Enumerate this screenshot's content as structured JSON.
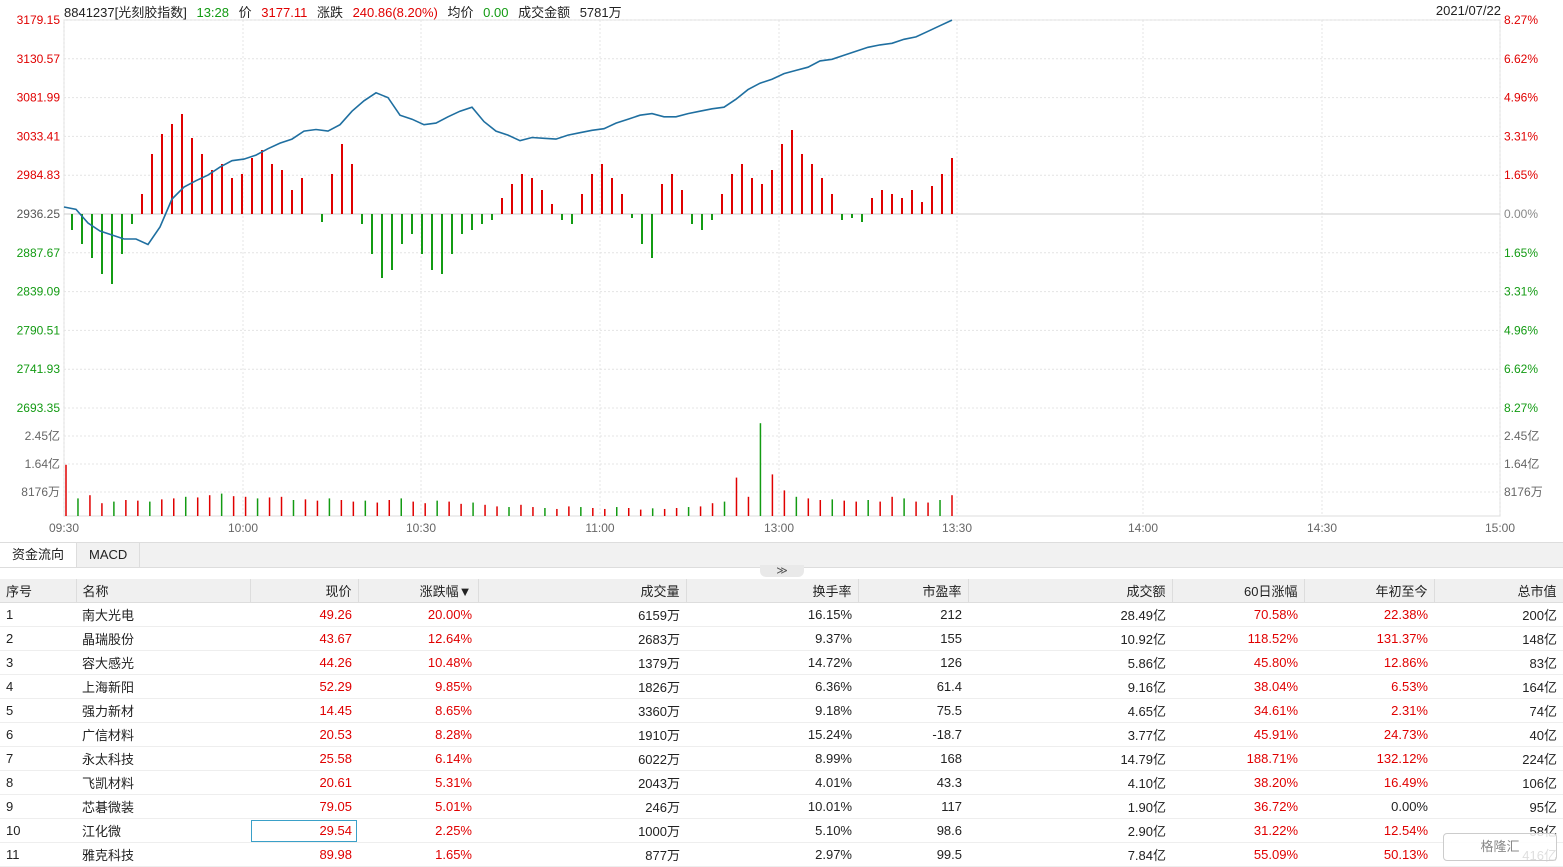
{
  "header": {
    "code_name": "8841237[光刻胶指数]",
    "time": "13:28",
    "price_label": "价",
    "price": "3177.11",
    "change_label": "涨跌",
    "change": "240.86(8.20%)",
    "avg_label": "均价",
    "avg": "0.00",
    "turnover_label": "成交金额",
    "turnover": "5781万",
    "date": "2021/07/22"
  },
  "chart_data": {
    "type": "line",
    "price_ticks": [
      "3179.15",
      "3130.57",
      "3081.99",
      "3033.41",
      "2984.83",
      "2936.25",
      "2887.67",
      "2839.09",
      "2790.51",
      "2741.93",
      "2693.35"
    ],
    "pct_ticks": [
      "8.27%",
      "6.62%",
      "4.96%",
      "3.31%",
      "1.65%",
      "0.00%",
      "1.65%",
      "3.31%",
      "4.96%",
      "6.62%",
      "8.27%"
    ],
    "pct_colors": [
      "#e00000",
      "#e00000",
      "#e00000",
      "#e00000",
      "#e00000",
      "#888888",
      "#139b13",
      "#139b13",
      "#139b13",
      "#139b13",
      "#139b13"
    ],
    "vol_ticks": [
      "2.45亿",
      "1.64亿",
      "8176万"
    ],
    "time_ticks": [
      "09:30",
      "10:00",
      "10:30",
      "11:00",
      "13:30",
      "14:00",
      "14:30",
      "15:00"
    ],
    "time_ticks_secondary": [
      "13:00"
    ],
    "price_series": [
      2945,
      2942,
      2925,
      2915,
      2910,
      2905,
      2905,
      2898,
      2920,
      2955,
      2970,
      2978,
      2985,
      2995,
      3003,
      3005,
      3010,
      3018,
      3025,
      3030,
      3040,
      3042,
      3040,
      3048,
      3065,
      3078,
      3088,
      3082,
      3060,
      3055,
      3048,
      3050,
      3058,
      3065,
      3070,
      3052,
      3040,
      3035,
      3028,
      3032,
      3031,
      3030,
      3035,
      3038,
      3041,
      3043,
      3050,
      3055,
      3060,
      3062,
      3058,
      3058,
      3062,
      3065,
      3068,
      3070,
      3080,
      3092,
      3100,
      3105,
      3112,
      3116,
      3120,
      3128,
      3130,
      3135,
      3140,
      3145,
      3148,
      3150,
      3155,
      3158,
      3165,
      3172,
      3179
    ],
    "volume_series": [
      160,
      55,
      65,
      40,
      45,
      50,
      48,
      45,
      52,
      55,
      60,
      58,
      65,
      70,
      62,
      60,
      55,
      58,
      60,
      50,
      52,
      48,
      55,
      50,
      45,
      48,
      42,
      50,
      55,
      45,
      40,
      48,
      45,
      38,
      42,
      35,
      30,
      28,
      35,
      28,
      25,
      22,
      30,
      28,
      25,
      22,
      28,
      25,
      20,
      24,
      22,
      25,
      28,
      30,
      40,
      45,
      120,
      60,
      290,
      130,
      80,
      60,
      55,
      50,
      52,
      48,
      45,
      50,
      45,
      60,
      55,
      45,
      42,
      50,
      65
    ],
    "macd_series": [
      -8,
      -15,
      -22,
      -30,
      -35,
      -20,
      -5,
      10,
      30,
      40,
      45,
      50,
      38,
      30,
      22,
      25,
      18,
      20,
      28,
      32,
      25,
      22,
      12,
      18,
      0,
      -4,
      20,
      35,
      25,
      -5,
      -20,
      -32,
      -28,
      -15,
      -10,
      -20,
      -28,
      -30,
      -20,
      -10,
      -8,
      -5,
      -3,
      8,
      15,
      20,
      18,
      12,
      5,
      -3,
      -5,
      10,
      20,
      25,
      18,
      10,
      -2,
      -15,
      -22,
      15,
      20,
      12,
      -5,
      -8,
      -3,
      10,
      20,
      25,
      18,
      15,
      22,
      35,
      42,
      30,
      25,
      18,
      10,
      -3,
      -2,
      -4,
      8,
      12,
      10,
      8,
      12,
      6,
      14,
      20,
      28
    ],
    "ylim": [
      2693.35,
      3179.15
    ]
  },
  "tabs": [
    "资金流向",
    "MACD"
  ],
  "collapse_glyph": "≫",
  "table": {
    "columns": [
      "序号",
      "名称",
      "现价",
      "涨跌幅▼",
      "成交量",
      "换手率",
      "市盈率",
      "成交额",
      "60日涨幅",
      "年初至今",
      "总市值"
    ],
    "rows": [
      [
        "1",
        "南大光电",
        "49.26",
        "20.00%",
        "6159万",
        "16.15%",
        "212",
        "28.49亿",
        "70.58%",
        "22.38%",
        "200亿"
      ],
      [
        "2",
        "晶瑞股份",
        "43.67",
        "12.64%",
        "2683万",
        "9.37%",
        "155",
        "10.92亿",
        "118.52%",
        "131.37%",
        "148亿"
      ],
      [
        "3",
        "容大感光",
        "44.26",
        "10.48%",
        "1379万",
        "14.72%",
        "126",
        "5.86亿",
        "45.80%",
        "12.86%",
        "83亿"
      ],
      [
        "4",
        "上海新阳",
        "52.29",
        "9.85%",
        "1826万",
        "6.36%",
        "61.4",
        "9.16亿",
        "38.04%",
        "6.53%",
        "164亿"
      ],
      [
        "5",
        "强力新材",
        "14.45",
        "8.65%",
        "3360万",
        "9.18%",
        "75.5",
        "4.65亿",
        "34.61%",
        "2.31%",
        "74亿"
      ],
      [
        "6",
        "广信材料",
        "20.53",
        "8.28%",
        "1910万",
        "15.24%",
        "-18.7",
        "3.77亿",
        "45.91%",
        "24.73%",
        "40亿"
      ],
      [
        "7",
        "永太科技",
        "25.58",
        "6.14%",
        "6022万",
        "8.99%",
        "168",
        "14.79亿",
        "188.71%",
        "132.12%",
        "224亿"
      ],
      [
        "8",
        "飞凯材料",
        "20.61",
        "5.31%",
        "2043万",
        "4.01%",
        "43.3",
        "4.10亿",
        "38.20%",
        "16.49%",
        "106亿"
      ],
      [
        "9",
        "芯碁微装",
        "79.05",
        "5.01%",
        "246万",
        "10.01%",
        "117",
        "1.90亿",
        "36.72%",
        "0.00%",
        "95亿"
      ],
      [
        "10",
        "江化微",
        "29.54",
        "2.25%",
        "1000万",
        "5.10%",
        "98.6",
        "2.90亿",
        "31.22%",
        "12.54%",
        "58亿"
      ],
      [
        "11",
        "雅克科技",
        "89.98",
        "1.65%",
        "877万",
        "2.97%",
        "99.5",
        "7.84亿",
        "55.09%",
        "50.13%",
        "416亿"
      ]
    ]
  },
  "watermark": "格隆汇"
}
